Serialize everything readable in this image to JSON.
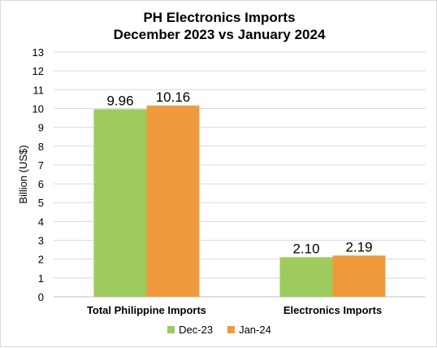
{
  "chart_data": {
    "type": "bar",
    "title_line1": "PH Electronics Imports",
    "title_line2": "December 2023 vs January 2024",
    "ylabel": "Billion (US$)",
    "xlabel": "",
    "ylim": [
      0,
      13
    ],
    "yticks": [
      "0",
      "1",
      "2",
      "3",
      "4",
      "5",
      "6",
      "7",
      "8",
      "9",
      "10",
      "11",
      "12",
      "13"
    ],
    "categories": [
      "Total Philippine Imports",
      "Electronics Imports"
    ],
    "series": [
      {
        "name": "Dec-23",
        "color": "#9dcb5e",
        "values": [
          9.96,
          2.1
        ],
        "labels": [
          "9.96",
          "2.10"
        ]
      },
      {
        "name": "Jan-24",
        "color": "#f09a3e",
        "values": [
          10.16,
          2.19
        ],
        "labels": [
          "10.16",
          "2.19"
        ]
      }
    ],
    "grid": true,
    "legend_position": "bottom"
  }
}
